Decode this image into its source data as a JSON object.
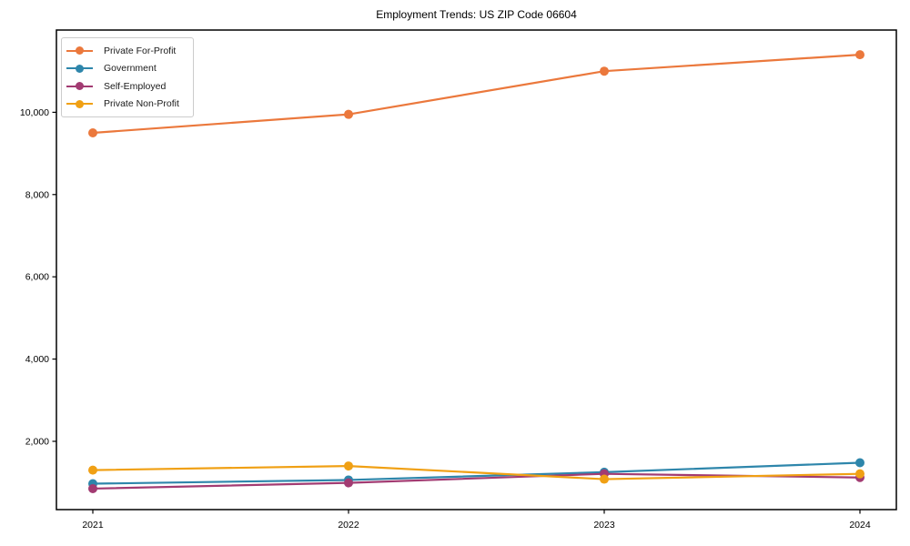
{
  "chart_data": {
    "type": "line",
    "title": "Employment Trends: US ZIP Code 06604",
    "xlabel": "",
    "ylabel": "",
    "categories": [
      "2021",
      "2022",
      "2023",
      "2024"
    ],
    "series": [
      {
        "name": "Private For-Profit",
        "color": "#EB783C",
        "values": [
          9500,
          9950,
          11000,
          11400
        ]
      },
      {
        "name": "Government",
        "color": "#2E86AB",
        "values": [
          970,
          1060,
          1250,
          1480
        ]
      },
      {
        "name": "Self-Employed",
        "color": "#A23B72",
        "values": [
          850,
          990,
          1210,
          1120
        ]
      },
      {
        "name": "Private Non-Profit",
        "color": "#F0A014",
        "values": [
          1300,
          1400,
          1080,
          1210
        ]
      }
    ],
    "yticks": [
      {
        "value": 2000,
        "label": "2,000"
      },
      {
        "value": 4000,
        "label": "4,000"
      },
      {
        "value": 6000,
        "label": "6,000"
      },
      {
        "value": 8000,
        "label": "8,000"
      },
      {
        "value": 10000,
        "label": "10,000"
      }
    ],
    "ylim": [
      340,
      12000
    ],
    "grid": false,
    "legend_position": "upper-left",
    "axis_color": "#000000",
    "tick_label_color": "#000000",
    "background_color": "#ffffff"
  }
}
